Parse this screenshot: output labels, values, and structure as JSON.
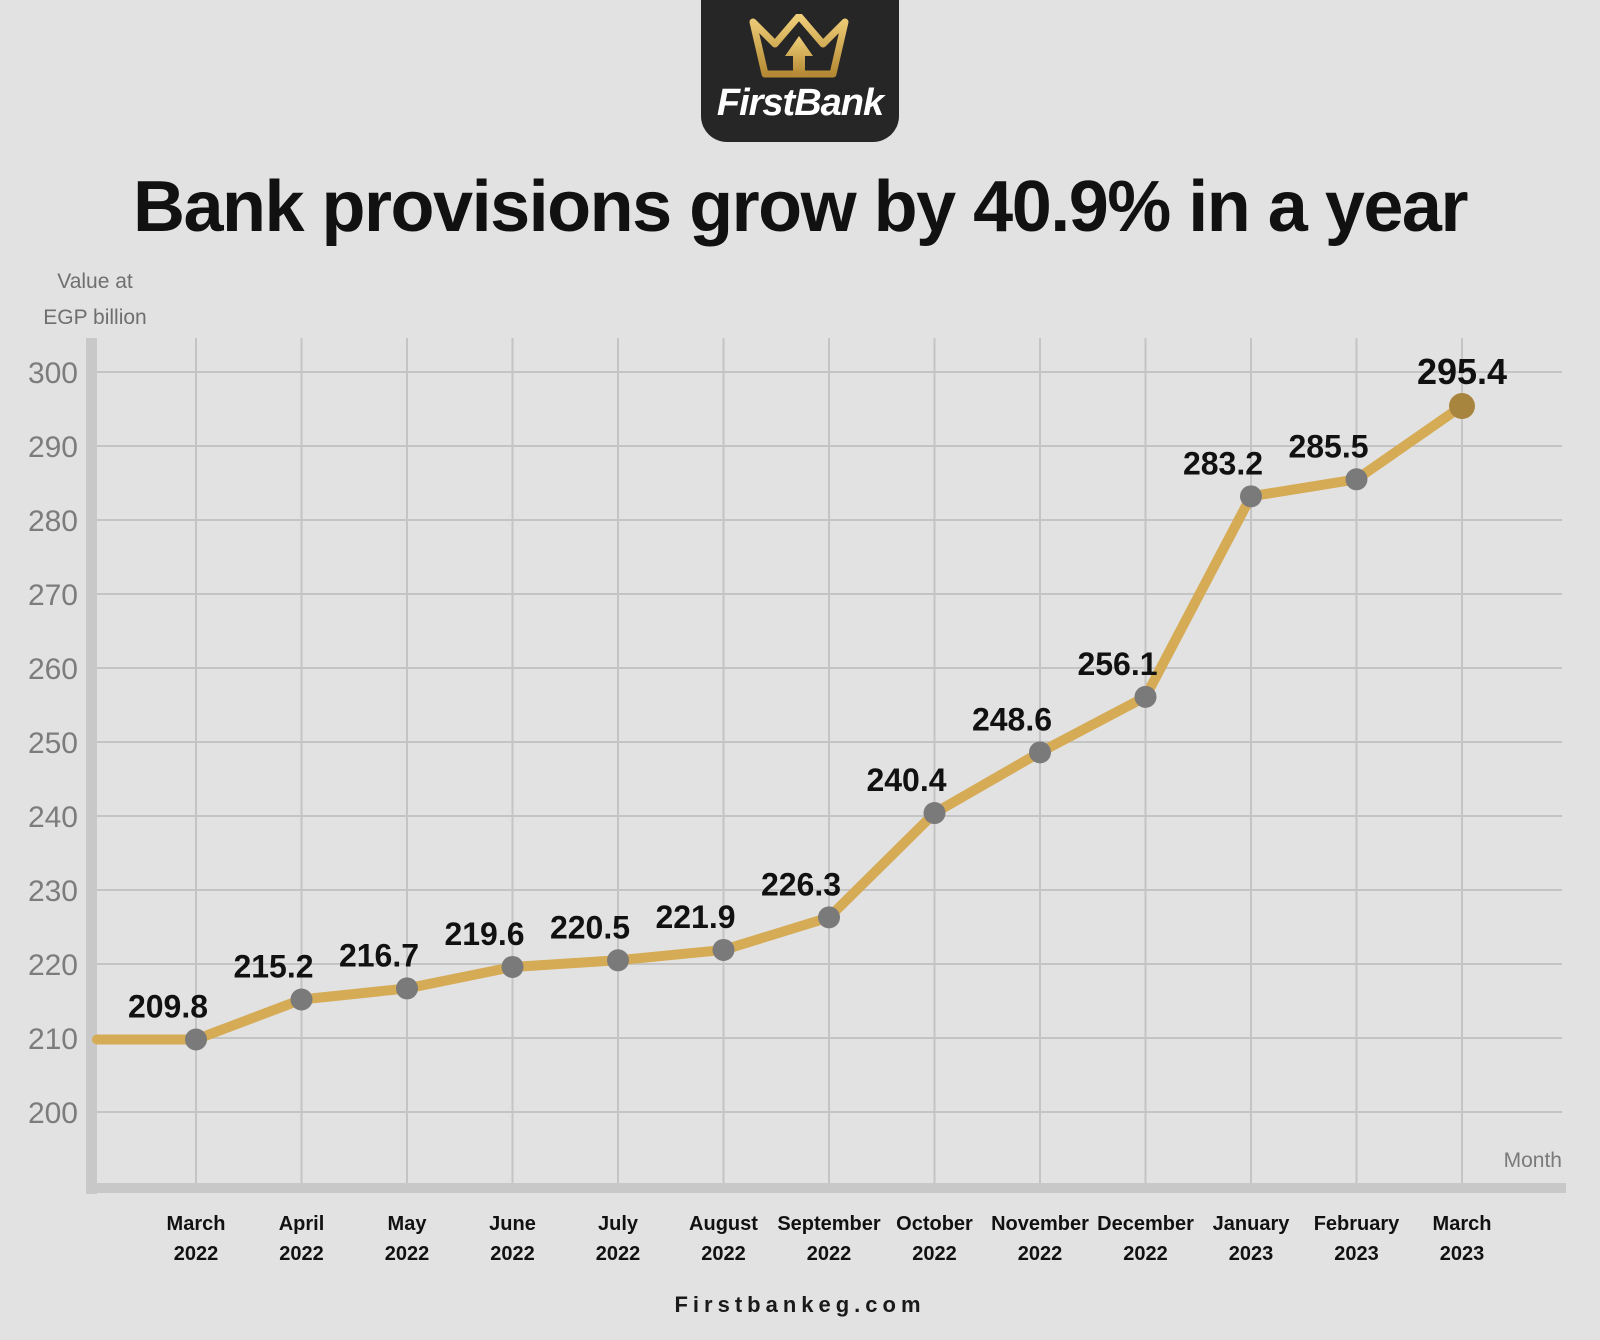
{
  "brand": {
    "name": "FirstBank",
    "website": "Firstbankeg.com"
  },
  "chart_data": {
    "type": "line",
    "title": "Bank provisions grow by 40.9% in a year",
    "ylabel": "Value at EGP billion",
    "ylabel_lines": [
      "Value at",
      "EGP billion"
    ],
    "xlabel": "Month",
    "ylim": [
      200,
      300
    ],
    "yticks": [
      200,
      210,
      220,
      230,
      240,
      250,
      260,
      270,
      280,
      290,
      300
    ],
    "grid": true,
    "categories": [
      [
        "March",
        "2022"
      ],
      [
        "April",
        "2022"
      ],
      [
        "May",
        "2022"
      ],
      [
        "June",
        "2022"
      ],
      [
        "July",
        "2022"
      ],
      [
        "August",
        "2022"
      ],
      [
        "September",
        "2022"
      ],
      [
        "October",
        "2022"
      ],
      [
        "November",
        "2022"
      ],
      [
        "December",
        "2022"
      ],
      [
        "January",
        "2023"
      ],
      [
        "February",
        "2023"
      ],
      [
        "March",
        "2023"
      ]
    ],
    "values": [
      209.8,
      215.2,
      216.7,
      219.6,
      220.5,
      221.9,
      226.3,
      240.4,
      248.6,
      256.1,
      283.2,
      285.5,
      295.4
    ],
    "data_labels": [
      "209.8",
      "215.2",
      "216.7",
      "219.6",
      "220.5",
      "221.9",
      "226.3",
      "240.4",
      "248.6",
      "256.1",
      "283.2",
      "285.5",
      "295.4"
    ],
    "colors": {
      "line": "#d6ab55",
      "marker": "#7a7a7a",
      "highlight_marker": "#a8853f",
      "grid": "#c4c4c4",
      "axis": "#c8c8c8"
    }
  }
}
